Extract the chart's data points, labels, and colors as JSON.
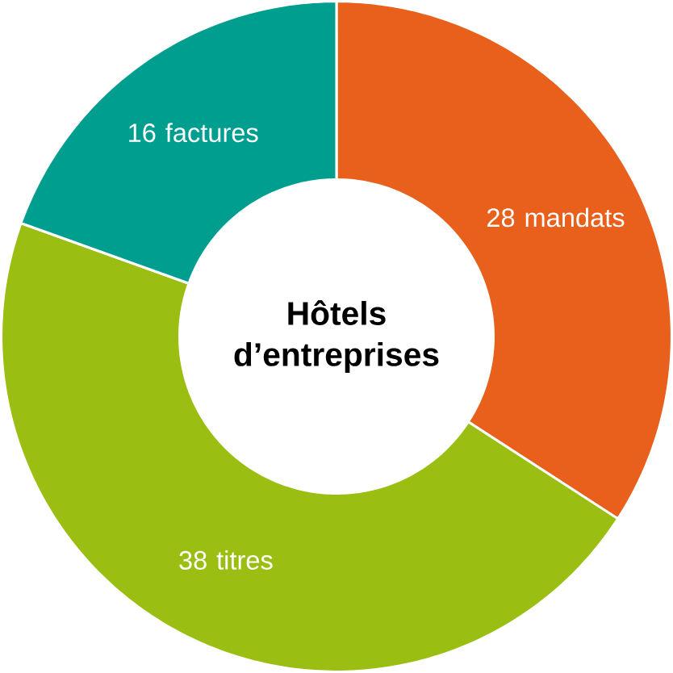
{
  "chart_data": {
    "type": "donut",
    "title": "Hôtels d’entreprises",
    "categories": [
      "mandats",
      "titres",
      "factures"
    ],
    "values": [
      28,
      38,
      16
    ],
    "colors": [
      "#e8601c",
      "#9abf12",
      "#009e8e"
    ],
    "data_labels": true
  }
}
